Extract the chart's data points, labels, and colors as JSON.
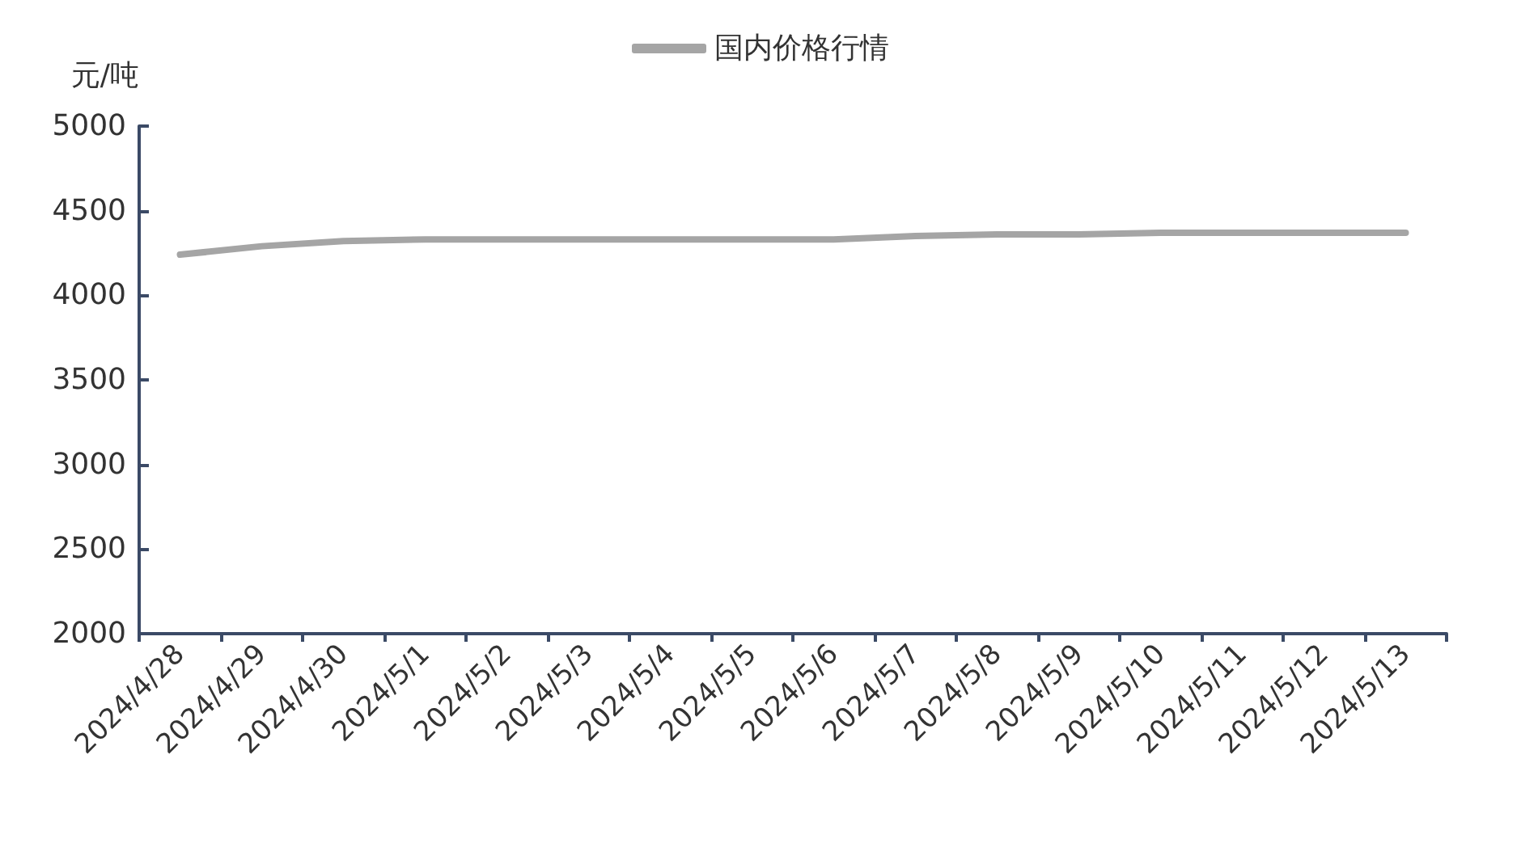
{
  "chart_data": {
    "type": "line",
    "ylabel": "元/吨",
    "categories": [
      "2024/4/28",
      "2024/4/29",
      "2024/4/30",
      "2024/5/1",
      "2024/5/2",
      "2024/5/3",
      "2024/5/4",
      "2024/5/5",
      "2024/5/6",
      "2024/5/7",
      "2024/5/8",
      "2024/5/9",
      "2024/5/10",
      "2024/5/11",
      "2024/5/12",
      "2024/5/13"
    ],
    "series": [
      {
        "name": "国内价格行情",
        "color": "#a5a5a5",
        "values": [
          4240,
          4290,
          4320,
          4330,
          4330,
          4330,
          4330,
          4330,
          4330,
          4350,
          4360,
          4360,
          4370,
          4370,
          4370,
          4370
        ]
      }
    ],
    "ylim": [
      2000,
      5000
    ],
    "yticks": [
      2000,
      2500,
      3000,
      3500,
      4000,
      4500,
      5000
    ],
    "grid": false,
    "legend": "top",
    "marker": "none",
    "line_style": "solid"
  }
}
